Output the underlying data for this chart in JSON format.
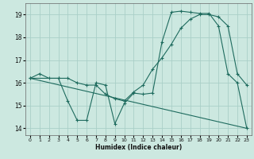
{
  "xlabel": "Humidex (Indice chaleur)",
  "background_color": "#cce8e0",
  "grid_color": "#aacfc8",
  "line_color": "#1e6b5e",
  "xlim": [
    -0.5,
    23.5
  ],
  "ylim": [
    13.7,
    19.5
  ],
  "xticks": [
    0,
    1,
    2,
    3,
    4,
    5,
    6,
    7,
    8,
    9,
    10,
    11,
    12,
    13,
    14,
    15,
    16,
    17,
    18,
    19,
    20,
    21,
    22,
    23
  ],
  "yticks": [
    14,
    15,
    16,
    17,
    18,
    19
  ],
  "line1_x": [
    0,
    1,
    2,
    3,
    4,
    5,
    6,
    7,
    8,
    9,
    10,
    11,
    12,
    13,
    14,
    15,
    16,
    17,
    18,
    19,
    20,
    21,
    22,
    23
  ],
  "line1_y": [
    16.2,
    16.4,
    16.2,
    16.2,
    16.2,
    16.0,
    15.9,
    15.9,
    15.5,
    15.3,
    15.2,
    15.6,
    15.9,
    16.6,
    17.1,
    17.7,
    18.4,
    18.8,
    19.0,
    19.0,
    18.9,
    18.5,
    16.4,
    15.9
  ],
  "line2_x": [
    0,
    3,
    4,
    5,
    6,
    7,
    8,
    9,
    10,
    11,
    12,
    13,
    14,
    15,
    16,
    17,
    18,
    19,
    20,
    21,
    22,
    23
  ],
  "line2_y": [
    16.2,
    16.2,
    15.2,
    14.35,
    14.35,
    16.0,
    15.9,
    14.2,
    15.1,
    15.55,
    15.5,
    15.55,
    17.8,
    19.1,
    19.15,
    19.1,
    19.05,
    19.05,
    18.5,
    16.4,
    16.0,
    14.0
  ],
  "line3_x": [
    0,
    23
  ],
  "line3_y": [
    16.2,
    14.0
  ]
}
